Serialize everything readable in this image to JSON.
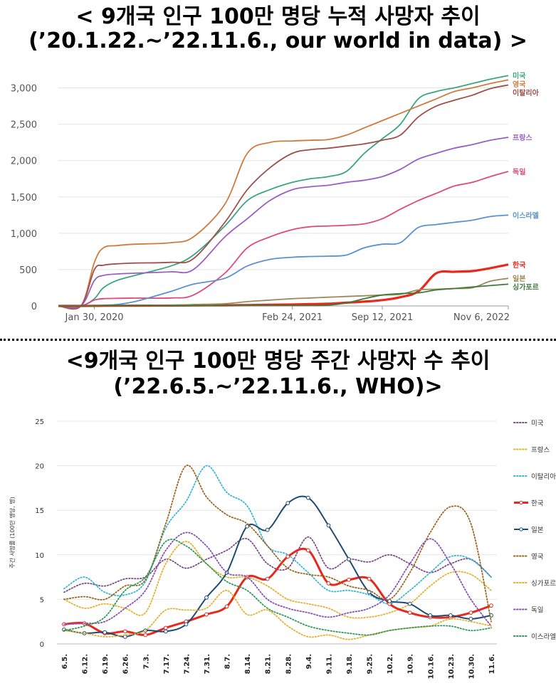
{
  "chart_data": [
    {
      "type": "line",
      "title_line1": "< 9개국 인구 100만 명당 누적 사망자 추이",
      "title_line2": "(’20.1.22.~’22.11.6., our world in data) >",
      "x_tick_labels": [
        "Jan 30, 2020",
        "Feb 24, 2021",
        "Sep 12, 2021",
        "Nov 6, 2022"
      ],
      "x_ticks_at": [
        0.08,
        0.52,
        0.72,
        1.0
      ],
      "y_ticks": [
        0,
        500,
        1000,
        1500,
        2000,
        2500,
        3000
      ],
      "y_tick_labels": [
        "0",
        "500",
        "1,000",
        "1,500",
        "2,000",
        "2,500",
        "3,000"
      ],
      "ylim": [
        0,
        3250
      ],
      "xlim": [
        0,
        1
      ],
      "x": [
        0,
        0.05,
        0.08,
        0.1,
        0.13,
        0.17,
        0.25,
        0.3,
        0.37,
        0.42,
        0.47,
        0.52,
        0.56,
        0.6,
        0.64,
        0.68,
        0.72,
        0.76,
        0.8,
        0.84,
        0.88,
        0.92,
        0.96,
        1.0
      ],
      "series": [
        {
          "name": "미국",
          "color": "#3aa680",
          "values": [
            0,
            0,
            100,
            250,
            350,
            420,
            550,
            700,
            1100,
            1450,
            1600,
            1700,
            1750,
            1780,
            1850,
            2100,
            2300,
            2500,
            2850,
            2950,
            3000,
            3060,
            3120,
            3170
          ]
        },
        {
          "name": "영국",
          "color": "#d07b3c",
          "values": [
            0,
            0,
            600,
            800,
            830,
            850,
            870,
            950,
            1400,
            2100,
            2250,
            2270,
            2280,
            2290,
            2350,
            2450,
            2550,
            2650,
            2750,
            2850,
            2950,
            3000,
            3060,
            3110
          ]
        },
        {
          "name": "이탈리아",
          "color": "#a0504b",
          "values": [
            0,
            0,
            500,
            560,
            580,
            590,
            600,
            650,
            1150,
            1600,
            1900,
            2100,
            2150,
            2170,
            2200,
            2230,
            2280,
            2350,
            2600,
            2750,
            2830,
            2900,
            2990,
            3040
          ]
        },
        {
          "name": "프랑스",
          "color": "#9a5fc4",
          "values": [
            0,
            0,
            350,
            420,
            440,
            450,
            470,
            500,
            950,
            1200,
            1450,
            1600,
            1640,
            1660,
            1700,
            1730,
            1780,
            1880,
            2020,
            2100,
            2170,
            2220,
            2280,
            2320
          ]
        },
        {
          "name": "독일",
          "color": "#de4a7e",
          "values": [
            0,
            0,
            80,
            100,
            105,
            108,
            110,
            150,
            450,
            800,
            950,
            1050,
            1090,
            1100,
            1110,
            1130,
            1200,
            1330,
            1450,
            1550,
            1650,
            1700,
            1780,
            1850
          ]
        },
        {
          "name": "이스라엘",
          "color": "#5a91d3",
          "values": [
            0,
            0,
            5,
            10,
            20,
            60,
            200,
            300,
            380,
            550,
            640,
            670,
            680,
            685,
            700,
            800,
            850,
            870,
            1080,
            1120,
            1150,
            1180,
            1230,
            1250
          ]
        },
        {
          "name": "한국",
          "color": "#e8281c",
          "values": [
            0,
            0,
            1,
            2,
            3,
            4,
            5,
            7,
            9,
            12,
            16,
            20,
            25,
            30,
            45,
            60,
            80,
            120,
            200,
            450,
            470,
            480,
            520,
            570
          ]
        },
        {
          "name": "일본",
          "color": "#9c8a5a",
          "values": [
            0,
            0,
            1,
            2,
            4,
            6,
            10,
            20,
            30,
            60,
            80,
            100,
            110,
            120,
            130,
            140,
            150,
            160,
            220,
            230,
            240,
            250,
            340,
            380
          ]
        },
        {
          "name": "싱가포르",
          "color": "#3d7a3a",
          "values": [
            0,
            0,
            1,
            2,
            3,
            4,
            4,
            5,
            5,
            5,
            5,
            6,
            6,
            10,
            40,
            100,
            150,
            170,
            180,
            220,
            240,
            260,
            280,
            300
          ]
        }
      ]
    },
    {
      "type": "line",
      "title_line1": "<9개국 인구 100만 명당 주간 사망자 수 추이",
      "title_line2": "(’22.6.5.~’22.11.6., WHO)>",
      "ylabel": "주간 사망률 (100만 명당, 명)",
      "categories": [
        "6.5.",
        "6.12.",
        "6.19.",
        "6.26.",
        "7.3.",
        "7.17.",
        "7.24.",
        "7.31.",
        "8.7.",
        "8.14.",
        "8.21.",
        "8.28.",
        "9.4.",
        "9.11.",
        "9.18.",
        "9.25.",
        "10.2.",
        "10.9.",
        "10.16.",
        "10.23.",
        "10.30.",
        "11.6."
      ],
      "y_ticks": [
        0,
        5,
        10,
        15,
        20,
        25
      ],
      "ylim": [
        0,
        25
      ],
      "series": [
        {
          "name": "미국",
          "color": "#7a4c8a",
          "style": "dot",
          "values": [
            5.8,
            6.8,
            6.5,
            7.3,
            7.5,
            9.5,
            8.5,
            9.5,
            10.5,
            11.8,
            9.0,
            8.5,
            12.0,
            8.5,
            9.5,
            9.2,
            10.0,
            9.0,
            8.0,
            9.0,
            9.5,
            7.5
          ]
        },
        {
          "name": "프랑스",
          "color": "#e6b12f",
          "style": "dot",
          "values": [
            5.0,
            4.0,
            4.5,
            4.0,
            3.5,
            9.0,
            11.5,
            9.0,
            7.5,
            7.5,
            6.5,
            5.0,
            4.5,
            4.0,
            3.0,
            3.0,
            3.5,
            4.5,
            6.5,
            8.0,
            7.8,
            6.0
          ]
        },
        {
          "name": "이탈리아",
          "color": "#37b8d6",
          "style": "dot",
          "values": [
            6.2,
            7.5,
            5.8,
            5.5,
            7.0,
            13.0,
            16.0,
            20.0,
            17.0,
            15.5,
            11.0,
            10.0,
            8.0,
            6.0,
            6.0,
            5.5,
            4.5,
            6.0,
            8.0,
            9.8,
            9.5,
            7.5
          ]
        },
        {
          "name": "한국",
          "color": "#e8281c",
          "style": "solid",
          "thick": true,
          "values": [
            2.2,
            2.3,
            1.2,
            1.4,
            1.0,
            1.8,
            2.5,
            3.3,
            4.2,
            7.5,
            7.3,
            9.8,
            10.5,
            6.8,
            7.2,
            7.3,
            4.5,
            3.5,
            3.0,
            3.0,
            3.5,
            4.3
          ]
        },
        {
          "name": "일본",
          "color": "#1e4a73",
          "style": "solid",
          "marker": true,
          "values": [
            1.6,
            1.2,
            1.3,
            0.8,
            1.5,
            1.4,
            2.2,
            5.2,
            8.0,
            13.2,
            12.8,
            15.8,
            16.4,
            13.3,
            9.5,
            5.8,
            4.8,
            4.5,
            3.2,
            3.2,
            2.8,
            3.2
          ]
        },
        {
          "name": "영국",
          "color": "#9b6620",
          "style": "dot",
          "values": [
            5.0,
            5.3,
            5.0,
            6.5,
            7.2,
            13.5,
            20.0,
            16.5,
            14.5,
            13.5,
            11.0,
            8.5,
            7.8,
            7.5,
            6.5,
            6.0,
            5.0,
            8.0,
            12.5,
            15.4,
            13.5,
            2.5
          ]
        },
        {
          "name": "싱가포르",
          "color": "#e6b12f",
          "style": "dot",
          "values": [
            1.5,
            1.2,
            0.8,
            1.0,
            1.5,
            3.8,
            3.8,
            4.0,
            6.0,
            3.3,
            3.8,
            2.0,
            0.8,
            1.0,
            0.5,
            1.0,
            1.5,
            1.8,
            2.0,
            2.8,
            2.5,
            2.0
          ]
        },
        {
          "name": "독일",
          "color": "#8a4fb5",
          "style": "dot",
          "values": [
            2.2,
            2.3,
            2.5,
            4.0,
            6.0,
            10.5,
            12.5,
            11.0,
            8.0,
            7.5,
            5.0,
            4.0,
            3.5,
            3.0,
            3.5,
            4.0,
            5.5,
            9.0,
            11.8,
            9.0,
            5.0,
            2.0
          ]
        },
        {
          "name": "이스라엘",
          "color": "#2e9a5a",
          "style": "dot",
          "values": [
            1.5,
            2.0,
            3.0,
            6.0,
            7.5,
            11.5,
            11.0,
            9.0,
            7.0,
            6.0,
            4.0,
            3.0,
            2.0,
            1.5,
            1.2,
            1.0,
            1.5,
            1.8,
            2.0,
            2.0,
            1.5,
            1.8
          ]
        }
      ]
    }
  ]
}
